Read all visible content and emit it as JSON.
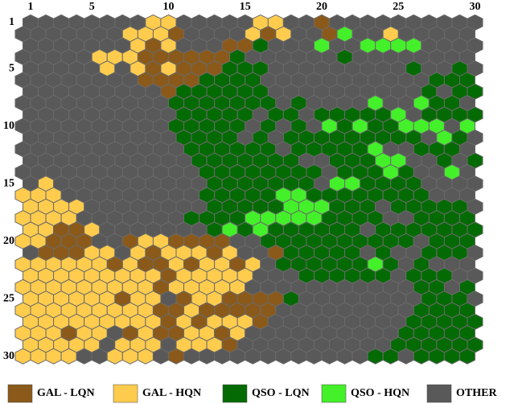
{
  "chart_data": {
    "type": "hexmap",
    "legend": [
      {
        "name": "GAL - LQN",
        "color": "#8b5a1a"
      },
      {
        "name": "GAL - HQN",
        "color": "#ffcc4d"
      },
      {
        "name": "QSO - LQN",
        "color": "#046b04"
      },
      {
        "name": "QSO - HQN",
        "color": "#44f02a"
      },
      {
        "name": "OTHER",
        "color": "#595959"
      }
    ],
    "xlim": [
      1,
      30
    ],
    "ylim": [
      1,
      30
    ],
    "xticks": [
      1,
      5,
      10,
      15,
      20,
      25,
      30
    ],
    "yticks": [
      1,
      5,
      10,
      15,
      20,
      25,
      30
    ],
    "cells": [
      [
        4,
        4,
        4,
        4,
        4,
        4,
        4,
        4,
        1,
        1,
        4,
        4,
        4,
        4,
        4,
        1,
        1,
        4,
        4,
        0,
        4,
        4,
        4,
        4,
        4,
        4,
        4,
        4,
        4,
        4
      ],
      [
        4,
        4,
        4,
        4,
        4,
        4,
        4,
        1,
        1,
        1,
        0,
        4,
        4,
        4,
        4,
        1,
        0,
        1,
        4,
        4,
        0,
        3,
        4,
        4,
        1,
        4,
        4,
        4,
        4,
        4
      ],
      [
        4,
        4,
        4,
        4,
        4,
        4,
        4,
        1,
        0,
        1,
        4,
        4,
        4,
        0,
        0,
        2,
        4,
        4,
        4,
        3,
        4,
        4,
        3,
        3,
        3,
        3,
        4,
        4,
        4,
        4
      ],
      [
        4,
        4,
        4,
        4,
        4,
        1,
        1,
        1,
        0,
        0,
        0,
        0,
        0,
        0,
        2,
        4,
        4,
        4,
        4,
        4,
        4,
        2,
        4,
        4,
        4,
        4,
        4,
        4,
        4,
        4
      ],
      [
        4,
        4,
        4,
        4,
        4,
        1,
        4,
        1,
        0,
        1,
        0,
        0,
        0,
        2,
        2,
        2,
        4,
        4,
        4,
        4,
        4,
        4,
        4,
        4,
        4,
        2,
        4,
        4,
        2,
        4
      ],
      [
        4,
        4,
        4,
        4,
        4,
        4,
        4,
        4,
        0,
        0,
        0,
        0,
        2,
        2,
        2,
        2,
        4,
        4,
        4,
        4,
        4,
        4,
        4,
        4,
        4,
        4,
        4,
        2,
        2,
        2
      ],
      [
        4,
        4,
        4,
        4,
        4,
        4,
        4,
        4,
        4,
        0,
        2,
        2,
        2,
        2,
        2,
        2,
        4,
        4,
        4,
        4,
        4,
        4,
        4,
        4,
        4,
        4,
        2,
        4,
        2,
        2
      ],
      [
        4,
        4,
        4,
        4,
        4,
        4,
        4,
        4,
        4,
        4,
        2,
        2,
        2,
        2,
        2,
        2,
        2,
        4,
        2,
        4,
        4,
        4,
        4,
        3,
        4,
        4,
        3,
        2,
        2,
        4
      ],
      [
        4,
        4,
        4,
        4,
        4,
        4,
        4,
        4,
        4,
        4,
        2,
        2,
        2,
        2,
        2,
        4,
        2,
        2,
        4,
        2,
        2,
        2,
        2,
        2,
        3,
        4,
        2,
        2,
        2,
        2
      ],
      [
        4,
        4,
        4,
        4,
        4,
        4,
        4,
        4,
        4,
        4,
        2,
        2,
        2,
        2,
        2,
        4,
        2,
        4,
        2,
        4,
        3,
        2,
        3,
        2,
        2,
        3,
        3,
        3,
        4,
        3
      ],
      [
        4,
        4,
        4,
        4,
        4,
        4,
        4,
        4,
        4,
        4,
        2,
        2,
        2,
        2,
        4,
        2,
        4,
        2,
        2,
        2,
        2,
        2,
        2,
        2,
        2,
        2,
        4,
        3,
        2,
        4
      ],
      [
        4,
        4,
        4,
        4,
        4,
        4,
        4,
        4,
        4,
        4,
        4,
        2,
        2,
        2,
        2,
        2,
        2,
        4,
        2,
        2,
        2,
        2,
        2,
        3,
        4,
        4,
        2,
        2,
        2,
        4
      ],
      [
        4,
        4,
        4,
        4,
        4,
        4,
        4,
        4,
        4,
        4,
        4,
        2,
        2,
        2,
        2,
        2,
        2,
        2,
        4,
        4,
        2,
        2,
        2,
        3,
        3,
        4,
        4,
        2,
        4,
        2
      ],
      [
        4,
        4,
        4,
        4,
        4,
        4,
        4,
        4,
        4,
        4,
        4,
        4,
        2,
        2,
        2,
        2,
        2,
        2,
        2,
        2,
        4,
        2,
        2,
        2,
        3,
        2,
        4,
        4,
        3,
        4
      ],
      [
        4,
        1,
        4,
        4,
        4,
        4,
        4,
        4,
        4,
        4,
        4,
        4,
        2,
        2,
        2,
        2,
        2,
        2,
        2,
        4,
        3,
        3,
        2,
        2,
        2,
        2,
        4,
        4,
        4,
        4
      ],
      [
        1,
        1,
        1,
        4,
        4,
        4,
        4,
        4,
        4,
        4,
        4,
        4,
        2,
        2,
        2,
        2,
        2,
        3,
        3,
        2,
        2,
        2,
        2,
        2,
        2,
        2,
        2,
        4,
        4,
        4
      ],
      [
        1,
        1,
        1,
        1,
        4,
        4,
        4,
        4,
        4,
        4,
        4,
        4,
        2,
        2,
        2,
        2,
        2,
        3,
        3,
        3,
        2,
        2,
        2,
        4,
        2,
        2,
        2,
        2,
        2,
        4
      ],
      [
        1,
        1,
        1,
        1,
        4,
        4,
        4,
        4,
        4,
        4,
        4,
        2,
        2,
        2,
        2,
        3,
        3,
        3,
        3,
        3,
        2,
        2,
        2,
        2,
        4,
        4,
        2,
        2,
        2,
        2
      ],
      [
        1,
        1,
        0,
        0,
        1,
        4,
        4,
        4,
        4,
        4,
        4,
        4,
        2,
        3,
        2,
        3,
        2,
        2,
        2,
        2,
        2,
        2,
        4,
        2,
        2,
        2,
        2,
        2,
        2,
        2
      ],
      [
        1,
        1,
        0,
        0,
        0,
        4,
        4,
        0,
        1,
        1,
        0,
        0,
        0,
        0,
        4,
        4,
        2,
        2,
        2,
        2,
        2,
        2,
        2,
        2,
        2,
        2,
        4,
        2,
        2,
        2
      ],
      [
        4,
        0,
        0,
        0,
        1,
        1,
        4,
        1,
        0,
        1,
        1,
        1,
        0,
        1,
        4,
        4,
        0,
        2,
        2,
        2,
        2,
        2,
        4,
        2,
        4,
        4,
        2,
        2,
        2,
        4
      ],
      [
        1,
        1,
        1,
        1,
        1,
        1,
        0,
        1,
        0,
        0,
        1,
        0,
        1,
        1,
        0,
        1,
        4,
        2,
        2,
        2,
        2,
        2,
        2,
        3,
        2,
        4,
        2,
        4,
        4,
        4
      ],
      [
        1,
        1,
        1,
        1,
        1,
        1,
        1,
        1,
        1,
        0,
        1,
        1,
        1,
        1,
        1,
        4,
        4,
        4,
        2,
        2,
        2,
        2,
        2,
        2,
        4,
        2,
        2,
        2,
        4,
        4
      ],
      [
        1,
        1,
        1,
        1,
        1,
        1,
        1,
        1,
        1,
        0,
        1,
        1,
        1,
        1,
        1,
        4,
        4,
        4,
        4,
        4,
        4,
        4,
        4,
        4,
        4,
        4,
        2,
        2,
        4,
        2
      ],
      [
        1,
        1,
        1,
        1,
        1,
        1,
        0,
        1,
        1,
        4,
        0,
        1,
        1,
        0,
        0,
        0,
        0,
        2,
        4,
        4,
        4,
        4,
        4,
        4,
        4,
        4,
        2,
        2,
        2,
        4
      ],
      [
        1,
        1,
        1,
        1,
        1,
        1,
        1,
        1,
        1,
        0,
        0,
        1,
        0,
        0,
        0,
        0,
        0,
        4,
        4,
        4,
        4,
        4,
        4,
        4,
        4,
        4,
        2,
        2,
        2,
        2
      ],
      [
        1,
        1,
        1,
        1,
        1,
        1,
        1,
        1,
        1,
        0,
        1,
        0,
        1,
        1,
        1,
        0,
        4,
        4,
        4,
        4,
        4,
        4,
        4,
        4,
        4,
        2,
        2,
        2,
        2,
        2
      ],
      [
        1,
        1,
        1,
        0,
        1,
        1,
        4,
        0,
        1,
        0,
        0,
        1,
        1,
        0,
        1,
        4,
        4,
        4,
        4,
        4,
        4,
        4,
        4,
        4,
        4,
        2,
        2,
        2,
        2,
        2
      ],
      [
        1,
        1,
        1,
        1,
        1,
        4,
        1,
        1,
        1,
        4,
        1,
        1,
        1,
        0,
        4,
        4,
        4,
        4,
        4,
        4,
        4,
        4,
        4,
        4,
        2,
        2,
        2,
        2,
        2,
        2
      ],
      [
        1,
        1,
        1,
        1,
        4,
        4,
        1,
        1,
        1,
        4,
        0,
        4,
        4,
        4,
        4,
        4,
        4,
        4,
        4,
        4,
        4,
        4,
        4,
        2,
        2,
        4,
        2,
        2,
        2,
        2
      ]
    ]
  }
}
